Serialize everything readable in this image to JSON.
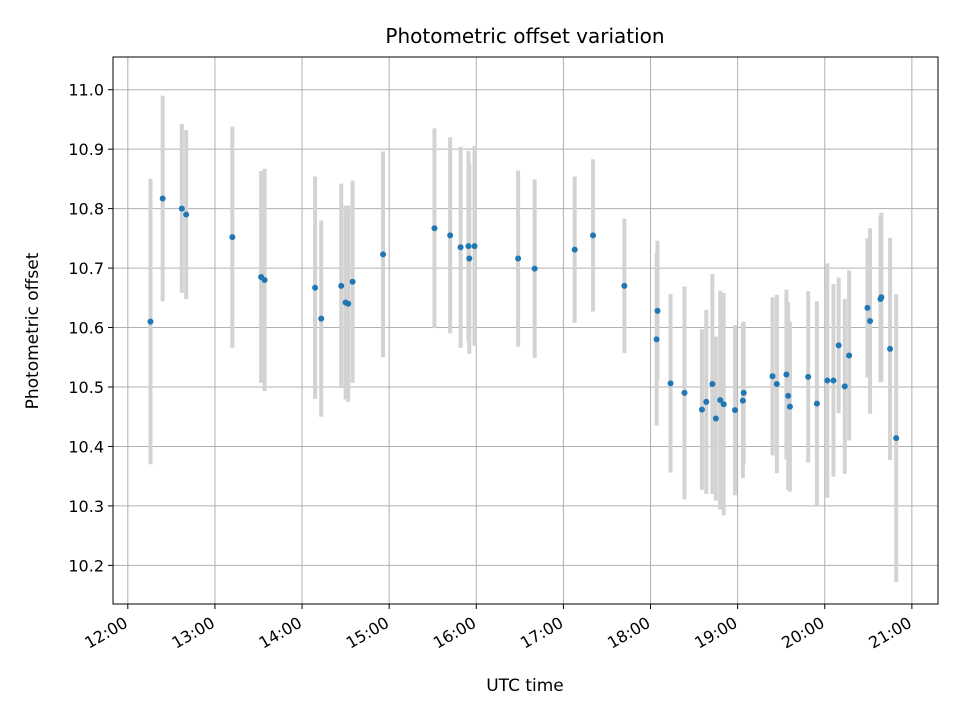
{
  "chart_data": {
    "type": "scatter",
    "title": "Photometric offset variation",
    "xlabel": "UTC time",
    "ylabel": "Photometric offset",
    "x_unit": "hours (UTC)",
    "xlim": [
      11.83,
      21.3
    ],
    "ylim": [
      10.135,
      11.055
    ],
    "x_ticks": [
      12,
      13,
      14,
      15,
      16,
      17,
      18,
      19,
      20,
      21
    ],
    "x_tick_labels": [
      "12:00",
      "13:00",
      "14:00",
      "15:00",
      "16:00",
      "17:00",
      "18:00",
      "19:00",
      "20:00",
      "21:00"
    ],
    "y_ticks": [
      10.2,
      10.3,
      10.4,
      10.5,
      10.6,
      10.7,
      10.8,
      10.9,
      11.0
    ],
    "y_tick_labels": [
      "10.2",
      "10.3",
      "10.4",
      "10.5",
      "10.6",
      "10.7",
      "10.8",
      "10.9",
      "11.0"
    ],
    "grid": true,
    "legend": "none",
    "colors": {
      "point": "#1f77b4",
      "errorbar": "#d3d3d3",
      "grid": "#b0b0b0"
    },
    "series": [
      {
        "x": [
          12.26,
          12.4,
          12.62,
          12.67,
          13.2,
          13.53,
          13.57,
          14.15,
          14.22,
          14.45,
          14.5,
          14.53,
          14.58,
          14.93,
          15.52,
          15.7,
          15.82,
          15.91,
          15.92,
          15.98,
          16.48,
          16.67,
          17.13,
          17.34,
          17.7,
          18.07,
          18.08,
          18.23,
          18.39,
          18.59,
          18.64,
          18.71,
          18.75,
          18.8,
          18.84,
          18.97,
          19.06,
          19.07,
          19.4,
          19.45,
          19.56,
          19.58,
          19.6,
          19.81,
          19.91,
          20.03,
          20.1,
          20.16,
          20.23,
          20.28,
          20.49,
          20.52,
          20.64,
          20.65,
          20.75,
          20.82
        ],
        "y": [
          10.61,
          10.817,
          10.8,
          10.79,
          10.752,
          10.685,
          10.68,
          10.667,
          10.615,
          10.67,
          10.642,
          10.64,
          10.677,
          10.723,
          10.767,
          10.755,
          10.735,
          10.737,
          10.716,
          10.737,
          10.716,
          10.699,
          10.731,
          10.755,
          10.67,
          10.58,
          10.628,
          10.506,
          10.49,
          10.462,
          10.475,
          10.505,
          10.447,
          10.478,
          10.471,
          10.461,
          10.477,
          10.49,
          10.518,
          10.505,
          10.521,
          10.485,
          10.467,
          10.517,
          10.472,
          10.511,
          10.511,
          10.57,
          10.501,
          10.553,
          10.633,
          10.611,
          10.648,
          10.651,
          10.564,
          10.414
        ],
        "err": [
          0.24,
          0.173,
          0.142,
          0.142,
          0.186,
          0.178,
          0.187,
          0.187,
          0.165,
          0.172,
          0.163,
          0.165,
          0.17,
          0.173,
          0.168,
          0.165,
          0.169,
          0.16,
          0.16,
          0.168,
          0.148,
          0.15,
          0.123,
          0.128,
          0.113,
          0.145,
          0.118,
          0.15,
          0.179,
          0.135,
          0.155,
          0.185,
          0.138,
          0.184,
          0.187,
          0.143,
          0.13,
          0.12,
          0.133,
          0.15,
          0.143,
          0.158,
          0.143,
          0.144,
          0.172,
          0.197,
          0.162,
          0.114,
          0.147,
          0.143,
          0.117,
          0.156,
          0.14,
          0.142,
          0.187,
          0.242
        ]
      }
    ]
  }
}
